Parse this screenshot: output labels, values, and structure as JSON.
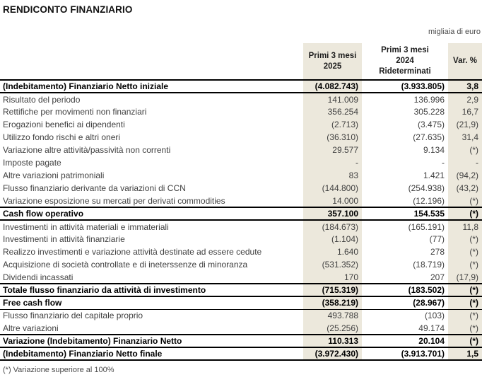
{
  "page": {
    "title": "RENDICONTO FINANZIARIO",
    "unit_note": "migliaia di euro",
    "footnote": "(*) Variazione superiore al 100%"
  },
  "colors": {
    "band": "#ECE8DC",
    "text": "#3F3F3F",
    "emphasis_text": "#000000",
    "border": "#000000"
  },
  "table": {
    "columns": [
      {
        "label": "Primi 3 mesi 2025"
      },
      {
        "label": "Primi 3 mesi 2024 Rideterminati"
      },
      {
        "label": "Var. %"
      }
    ],
    "rows": [
      {
        "label": "(Indebitamento) Finanziario Netto iniziale",
        "v2025": "(4.082.743)",
        "v2024": "(3.933.805)",
        "var": "3,8",
        "style": "section"
      },
      {
        "label": "Risultato del periodo",
        "v2025": "141.009",
        "v2024": "136.996",
        "var": "2,9",
        "style": "normal"
      },
      {
        "label": "Rettifiche per movimenti non finanziari",
        "v2025": "356.254",
        "v2024": "305.228",
        "var": "16,7",
        "style": "normal"
      },
      {
        "label": "Erogazioni benefici ai dipendenti",
        "v2025": "(2.713)",
        "v2024": "(3.475)",
        "var": "(21,9)",
        "style": "normal"
      },
      {
        "label": "Utilizzo fondo rischi e altri oneri",
        "v2025": "(36.310)",
        "v2024": "(27.635)",
        "var": "31,4",
        "style": "normal"
      },
      {
        "label": "Variazione altre attività/passività non correnti",
        "v2025": "29.577",
        "v2024": "9.134",
        "var": "(*)",
        "style": "normal"
      },
      {
        "label": "Imposte pagate",
        "v2025": "-",
        "v2024": "-",
        "var": "-",
        "style": "normal"
      },
      {
        "label": "Altre variazioni patrimoniali",
        "v2025": "83",
        "v2024": "1.421",
        "var": "(94,2)",
        "style": "normal"
      },
      {
        "label": "Flusso finanziario derivante da variazioni di CCN",
        "v2025": "(144.800)",
        "v2024": "(254.938)",
        "var": "(43,2)",
        "style": "normal"
      },
      {
        "label": "Variazione esposizione su mercati per derivati commodities",
        "v2025": "14.000",
        "v2024": "(12.196)",
        "var": "(*)",
        "style": "normal"
      },
      {
        "label": "Cash flow operativo",
        "v2025": "357.100",
        "v2024": "154.535",
        "var": "(*)",
        "style": "section"
      },
      {
        "label": "Investimenti in attività materiali e immateriali",
        "v2025": "(184.673)",
        "v2024": "(165.191)",
        "var": "11,8",
        "style": "normal"
      },
      {
        "label": "Investimenti in attività finanziarie",
        "v2025": "(1.104)",
        "v2024": "(77)",
        "var": "(*)",
        "style": "normal"
      },
      {
        "label": "Realizzo investimenti e variazione attività destinate ad essere cedute",
        "v2025": "1.640",
        "v2024": "278",
        "var": "(*)",
        "style": "normal"
      },
      {
        "label": "Acquisizione di società controllate e di ineterssenze di minoranza",
        "v2025": "(531.352)",
        "v2024": "(18.719)",
        "var": "(*)",
        "style": "normal"
      },
      {
        "label": "Dividendi incassati",
        "v2025": "170",
        "v2024": "207",
        "var": "(17,9)",
        "style": "normal"
      },
      {
        "label": "Totale flusso finanziario da attività di investimento",
        "v2025": "(715.319)",
        "v2024": "(183.502)",
        "var": "(*)",
        "style": "section"
      },
      {
        "label": "Free cash flow",
        "v2025": "(358.219)",
        "v2024": "(28.967)",
        "var": "(*)",
        "style": "section-thin"
      },
      {
        "label": "Flusso finanziario del capitale proprio",
        "v2025": "493.788",
        "v2024": "(103)",
        "var": "(*)",
        "style": "normal"
      },
      {
        "label": "Altre variazioni",
        "v2025": "(25.256)",
        "v2024": "49.174",
        "var": "(*)",
        "style": "normal"
      },
      {
        "label": "Variazione (Indebitamento) Finanziario Netto",
        "v2025": "110.313",
        "v2024": "20.104",
        "var": "(*)",
        "style": "section"
      },
      {
        "label": "(Indebitamento) Finanziario Netto finale",
        "v2025": "(3.972.430)",
        "v2024": "(3.913.701)",
        "var": "1,5",
        "style": "section"
      }
    ]
  }
}
